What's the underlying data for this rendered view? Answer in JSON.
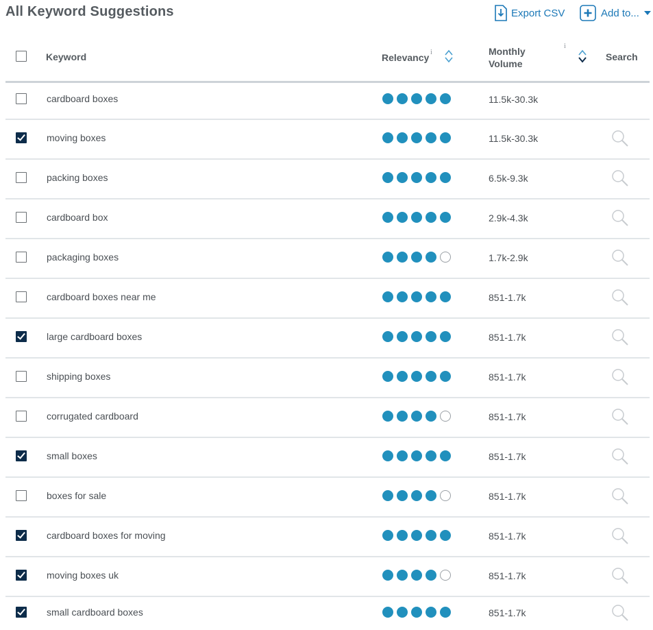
{
  "header": {
    "title": "All Keyword Suggestions",
    "export_label": "Export CSV",
    "addto_label": "Add to..."
  },
  "columns": {
    "keyword": "Keyword",
    "relevancy": "Relevancy",
    "volume_line1": "Monthly",
    "volume_line2": "Volume",
    "search": "Search",
    "info_mark": "i"
  },
  "colors": {
    "accent": "#1b78b7",
    "dot_fill": "#2190bd",
    "checkbox_checked": "#0d2c4a"
  },
  "rows": [
    {
      "keyword": "cardboard boxes",
      "checked": false,
      "relevancy": 5,
      "volume": "11.5k-30.3k",
      "search_icon": false
    },
    {
      "keyword": "moving boxes",
      "checked": true,
      "relevancy": 5,
      "volume": "11.5k-30.3k",
      "search_icon": true
    },
    {
      "keyword": "packing boxes",
      "checked": false,
      "relevancy": 5,
      "volume": "6.5k-9.3k",
      "search_icon": true
    },
    {
      "keyword": "cardboard box",
      "checked": false,
      "relevancy": 5,
      "volume": "2.9k-4.3k",
      "search_icon": true
    },
    {
      "keyword": "packaging boxes",
      "checked": false,
      "relevancy": 4,
      "volume": "1.7k-2.9k",
      "search_icon": true
    },
    {
      "keyword": "cardboard boxes near me",
      "checked": false,
      "relevancy": 5,
      "volume": "851-1.7k",
      "search_icon": true
    },
    {
      "keyword": "large cardboard boxes",
      "checked": true,
      "relevancy": 5,
      "volume": "851-1.7k",
      "search_icon": true
    },
    {
      "keyword": "shipping boxes",
      "checked": false,
      "relevancy": 5,
      "volume": "851-1.7k",
      "search_icon": true
    },
    {
      "keyword": "corrugated cardboard",
      "checked": false,
      "relevancy": 4,
      "volume": "851-1.7k",
      "search_icon": true
    },
    {
      "keyword": "small boxes",
      "checked": true,
      "relevancy": 5,
      "volume": "851-1.7k",
      "search_icon": true
    },
    {
      "keyword": "boxes for sale",
      "checked": false,
      "relevancy": 4,
      "volume": "851-1.7k",
      "search_icon": true
    },
    {
      "keyword": "cardboard boxes for moving",
      "checked": true,
      "relevancy": 5,
      "volume": "851-1.7k",
      "search_icon": true
    },
    {
      "keyword": "moving boxes uk",
      "checked": true,
      "relevancy": 4,
      "volume": "851-1.7k",
      "search_icon": true
    },
    {
      "keyword": "small cardboard boxes",
      "checked": true,
      "relevancy": 5,
      "volume": "851-1.7k",
      "search_icon": true
    }
  ]
}
